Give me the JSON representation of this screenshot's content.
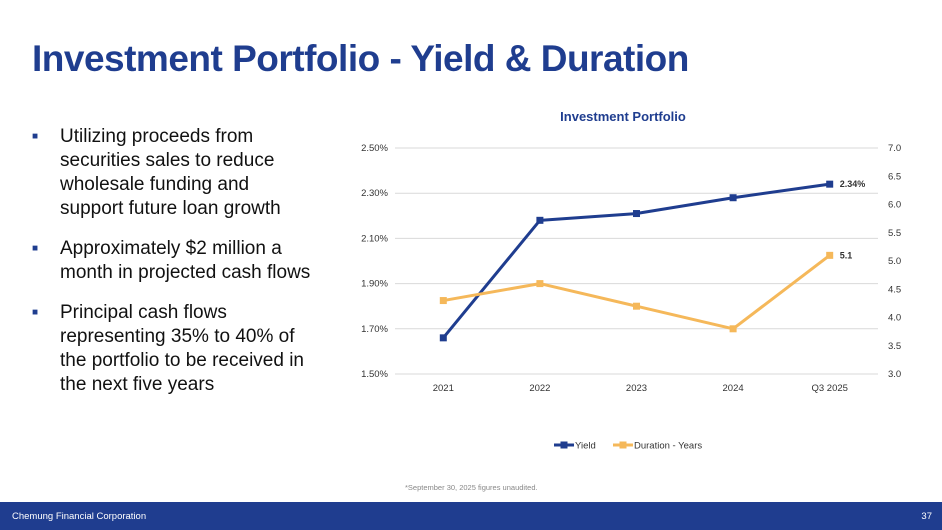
{
  "title": "Investment Portfolio - Yield & Duration",
  "bullets": [
    {
      "icon": "square-bullet-icon",
      "marker": "■",
      "text": "Utilizing proceeds from securities sales to reduce wholesale funding and support future loan growth"
    },
    {
      "icon": "square-bullet-icon",
      "marker": "■",
      "text": "Approximately $2 million a month in projected cash flows"
    },
    {
      "icon": "square-bullet-icon",
      "marker": "■",
      "text": "Principal cash flows representing 35% to 40% of the portfolio to be received in the next five years"
    }
  ],
  "chart_data": {
    "type": "line",
    "title": "Investment Portfolio",
    "categories": [
      "2021",
      "2022",
      "2023",
      "2024",
      "Q3 2025"
    ],
    "series": [
      {
        "name": "Yield",
        "axis": "left",
        "color": "#1f3d8f",
        "marker": "square",
        "values": [
          1.66,
          2.18,
          2.21,
          2.28,
          2.34
        ]
      },
      {
        "name": "Duration - Years",
        "axis": "right",
        "color": "#f5b85a",
        "marker": "square",
        "values": [
          4.3,
          4.6,
          4.2,
          3.8,
          5.1
        ]
      }
    ],
    "y_left": {
      "range": [
        1.5,
        2.5
      ],
      "ticks": [
        "1.50%",
        "1.70%",
        "1.90%",
        "2.10%",
        "2.30%",
        "2.50%"
      ]
    },
    "y_right": {
      "range": [
        3.0,
        7.0
      ],
      "ticks": [
        "3.0",
        "3.5",
        "4.0",
        "4.5",
        "5.0",
        "5.5",
        "6.0",
        "6.5",
        "7.0"
      ]
    },
    "data_labels": [
      {
        "series": "Yield",
        "category": "Q3 2025",
        "text": "2.34%"
      },
      {
        "series": "Duration - Years",
        "category": "Q3 2025",
        "text": "5.1"
      }
    ],
    "grid": true,
    "legend_position": "bottom"
  },
  "footnote": "*September 30, 2025 figures unaudited.",
  "footer": {
    "company": "Chemung Financial Corporation",
    "page_number": "37"
  },
  "colors": {
    "brand_blue": "#1f3d8f",
    "duration_orange": "#f5b85a",
    "grid": "#d9d9d9"
  }
}
